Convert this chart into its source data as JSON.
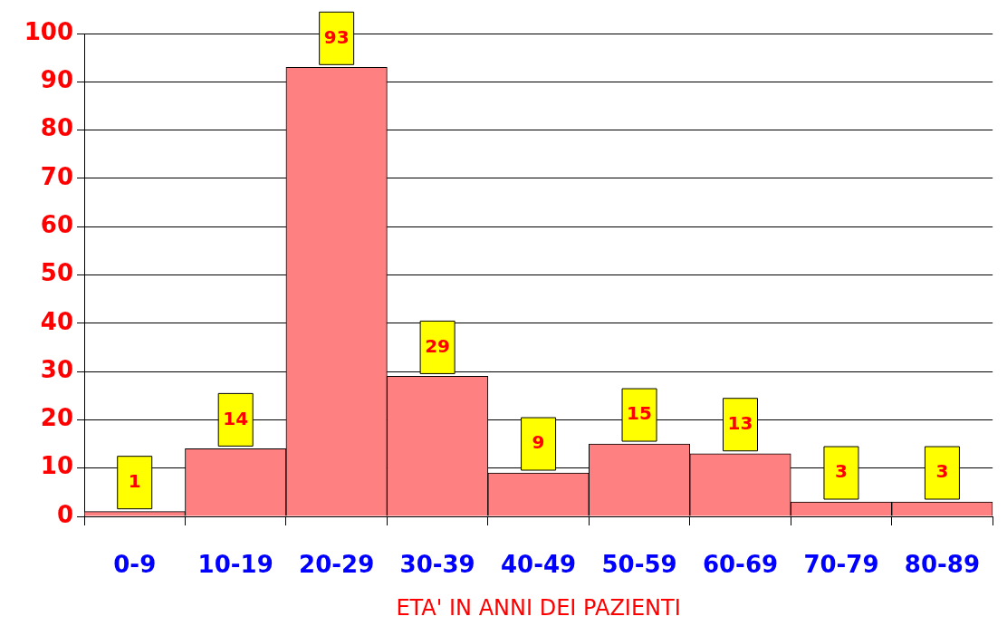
{
  "chart_data": {
    "type": "bar",
    "xlabel": "ETA' IN ANNI DEI PAZIENTI",
    "categories": [
      "0-9",
      "10-19",
      "20-29",
      "30-39",
      "40-49",
      "50-59",
      "60-69",
      "70-79",
      "80-89"
    ],
    "values": [
      1,
      14,
      93,
      29,
      9,
      15,
      13,
      3,
      3
    ],
    "color": "#ff8080",
    "ylim": [
      0,
      100
    ],
    "yticks": [
      0,
      10,
      20,
      30,
      40,
      50,
      60,
      70,
      80,
      90,
      100
    ],
    "grid": "y",
    "data_labels": true
  }
}
